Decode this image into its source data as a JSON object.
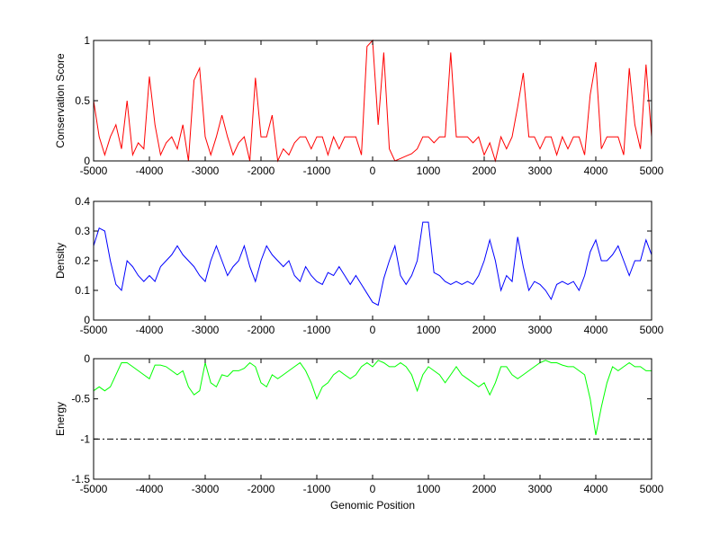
{
  "chart_data": [
    {
      "type": "line",
      "ylabel": "Conservation Score",
      "xlabel": "",
      "xlim": [
        -5000,
        5000
      ],
      "ylim": [
        0,
        1
      ],
      "xticks": [
        "-5000",
        "-4000",
        "-3000",
        "-2000",
        "-1000",
        "0",
        "1000",
        "2000",
        "3000",
        "4000",
        "5000"
      ],
      "yticks": [
        "0",
        "0.5",
        "1"
      ],
      "ytick_values": [
        0,
        0.5,
        1
      ],
      "color": "#ff0000",
      "series": [
        {
          "name": "conservation",
          "x_start": -5000,
          "x_step": 100,
          "values": [
            0.5,
            0.2,
            0.05,
            0.2,
            0.3,
            0.1,
            0.5,
            0.05,
            0.15,
            0.1,
            0.7,
            0.3,
            0.05,
            0.15,
            0.2,
            0.1,
            0.3,
            0.0,
            0.67,
            0.77,
            0.2,
            0.05,
            0.2,
            0.38,
            0.2,
            0.05,
            0.15,
            0.2,
            0.0,
            0.69,
            0.2,
            0.2,
            0.38,
            0.0,
            0.1,
            0.05,
            0.15,
            0.2,
            0.2,
            0.1,
            0.2,
            0.2,
            0.05,
            0.2,
            0.1,
            0.2,
            0.2,
            0.2,
            0.05,
            0.95,
            1.0,
            0.3,
            0.9,
            0.1,
            0.0,
            0.02,
            0.04,
            0.06,
            0.1,
            0.2,
            0.2,
            0.15,
            0.2,
            0.2,
            0.9,
            0.2,
            0.2,
            0.2,
            0.15,
            0.2,
            0.05,
            0.15,
            0.0,
            0.2,
            0.1,
            0.2,
            0.45,
            0.73,
            0.2,
            0.2,
            0.1,
            0.2,
            0.2,
            0.05,
            0.2,
            0.1,
            0.2,
            0.2,
            0.05,
            0.55,
            0.82,
            0.1,
            0.2,
            0.2,
            0.2,
            0.05,
            0.77,
            0.3,
            0.1,
            0.8,
            0.2
          ]
        }
      ]
    },
    {
      "type": "line",
      "ylabel": "Density",
      "xlabel": "",
      "xlim": [
        -5000,
        5000
      ],
      "ylim": [
        0,
        0.4
      ],
      "xticks": [
        "-5000",
        "-4000",
        "-3000",
        "-2000",
        "-1000",
        "0",
        "1000",
        "2000",
        "3000",
        "4000",
        "5000"
      ],
      "yticks": [
        "0",
        "0.1",
        "0.2",
        "0.3",
        "0.4"
      ],
      "ytick_values": [
        0,
        0.1,
        0.2,
        0.3,
        0.4
      ],
      "color": "#0000ff",
      "series": [
        {
          "name": "density",
          "x_start": -5000,
          "x_step": 100,
          "values": [
            0.25,
            0.31,
            0.3,
            0.2,
            0.12,
            0.1,
            0.2,
            0.18,
            0.15,
            0.13,
            0.15,
            0.13,
            0.18,
            0.2,
            0.22,
            0.25,
            0.22,
            0.2,
            0.18,
            0.15,
            0.13,
            0.2,
            0.25,
            0.2,
            0.15,
            0.18,
            0.2,
            0.25,
            0.18,
            0.13,
            0.2,
            0.25,
            0.22,
            0.2,
            0.18,
            0.2,
            0.15,
            0.13,
            0.18,
            0.15,
            0.13,
            0.12,
            0.16,
            0.15,
            0.18,
            0.15,
            0.12,
            0.15,
            0.12,
            0.09,
            0.06,
            0.05,
            0.14,
            0.2,
            0.25,
            0.15,
            0.12,
            0.15,
            0.2,
            0.33,
            0.33,
            0.16,
            0.15,
            0.13,
            0.12,
            0.13,
            0.12,
            0.13,
            0.12,
            0.15,
            0.2,
            0.27,
            0.2,
            0.1,
            0.15,
            0.13,
            0.28,
            0.18,
            0.1,
            0.13,
            0.12,
            0.1,
            0.07,
            0.12,
            0.13,
            0.12,
            0.13,
            0.1,
            0.15,
            0.23,
            0.27,
            0.2,
            0.2,
            0.22,
            0.25,
            0.2,
            0.15,
            0.2,
            0.2,
            0.27,
            0.22
          ]
        }
      ]
    },
    {
      "type": "line",
      "ylabel": "Energy",
      "xlabel": "Genomic Position",
      "xlim": [
        -5000,
        5000
      ],
      "ylim": [
        -1.5,
        0
      ],
      "xticks": [
        "-5000",
        "-4000",
        "-3000",
        "-2000",
        "-1000",
        "0",
        "1000",
        "2000",
        "3000",
        "4000",
        "5000"
      ],
      "yticks": [
        "-1.5",
        "-1",
        "-0.5",
        "0"
      ],
      "ytick_values": [
        -1.5,
        -1,
        -0.5,
        0
      ],
      "color": "#00ff00",
      "threshold": -1,
      "series": [
        {
          "name": "energy",
          "x_start": -5000,
          "x_step": 100,
          "values": [
            -0.4,
            -0.35,
            -0.4,
            -0.35,
            -0.2,
            -0.05,
            -0.05,
            -0.1,
            -0.15,
            -0.2,
            -0.25,
            -0.08,
            -0.08,
            -0.1,
            -0.15,
            -0.2,
            -0.15,
            -0.35,
            -0.45,
            -0.4,
            -0.05,
            -0.3,
            -0.35,
            -0.2,
            -0.22,
            -0.15,
            -0.15,
            -0.12,
            -0.05,
            -0.1,
            -0.3,
            -0.35,
            -0.2,
            -0.25,
            -0.2,
            -0.15,
            -0.1,
            -0.05,
            -0.15,
            -0.3,
            -0.5,
            -0.35,
            -0.3,
            -0.2,
            -0.15,
            -0.2,
            -0.25,
            -0.2,
            -0.1,
            -0.05,
            -0.1,
            -0.02,
            -0.05,
            -0.1,
            -0.1,
            -0.05,
            -0.1,
            -0.2,
            -0.4,
            -0.2,
            -0.1,
            -0.15,
            -0.2,
            -0.3,
            -0.2,
            -0.1,
            -0.2,
            -0.25,
            -0.3,
            -0.35,
            -0.3,
            -0.45,
            -0.3,
            -0.1,
            -0.1,
            -0.2,
            -0.25,
            -0.2,
            -0.15,
            -0.1,
            -0.05,
            -0.02,
            -0.05,
            -0.05,
            -0.08,
            -0.1,
            -0.1,
            -0.15,
            -0.2,
            -0.5,
            -0.95,
            -0.6,
            -0.3,
            -0.1,
            -0.15,
            -0.1,
            -0.05,
            -0.1,
            -0.1,
            -0.15,
            -0.15
          ]
        }
      ]
    }
  ]
}
